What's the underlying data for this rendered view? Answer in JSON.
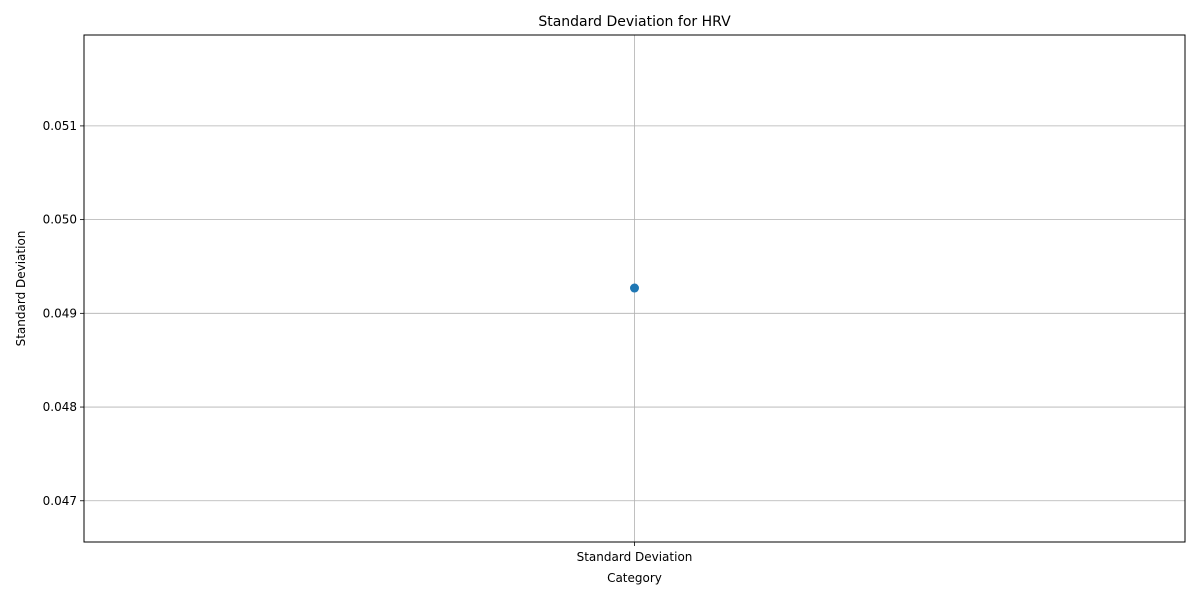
{
  "chart_data": {
    "type": "scatter",
    "title": "Standard Deviation for HRV",
    "xlabel": "Category",
    "ylabel": "Standard Deviation",
    "categories": [
      "Standard Deviation"
    ],
    "values": [
      0.04927
    ],
    "ylim": [
      0.04656,
      0.05197
    ],
    "yticks": [
      0.047,
      0.048,
      0.049,
      0.05,
      0.051
    ],
    "ytick_labels": [
      "0.047",
      "0.048",
      "0.049",
      "0.050",
      "0.051"
    ],
    "grid": true,
    "legend": "none",
    "marker_color": "#1f77b4",
    "grid_color": "#b0b0b0"
  }
}
